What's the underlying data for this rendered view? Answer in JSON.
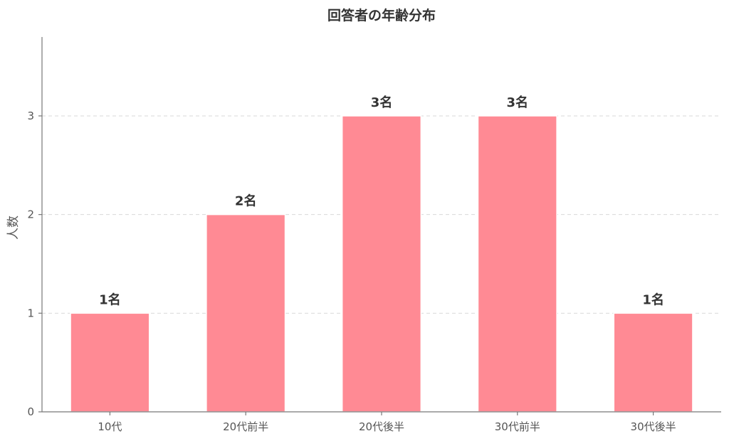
{
  "chart_data": {
    "type": "bar",
    "title": "回答者の年齢分布",
    "xlabel": "",
    "ylabel": "人数",
    "categories": [
      "10代",
      "20代前半",
      "20代後半",
      "30代前半",
      "30代後半"
    ],
    "values": [
      1,
      2,
      3,
      3,
      1
    ],
    "data_labels": [
      "1名",
      "2名",
      "3名",
      "3名",
      "1名"
    ],
    "yticks": [
      "0",
      "1",
      "2",
      "3"
    ],
    "ylim": [
      0,
      3.8
    ],
    "grid": "horizontal-dashed",
    "bar_color": "#ff8a94"
  }
}
